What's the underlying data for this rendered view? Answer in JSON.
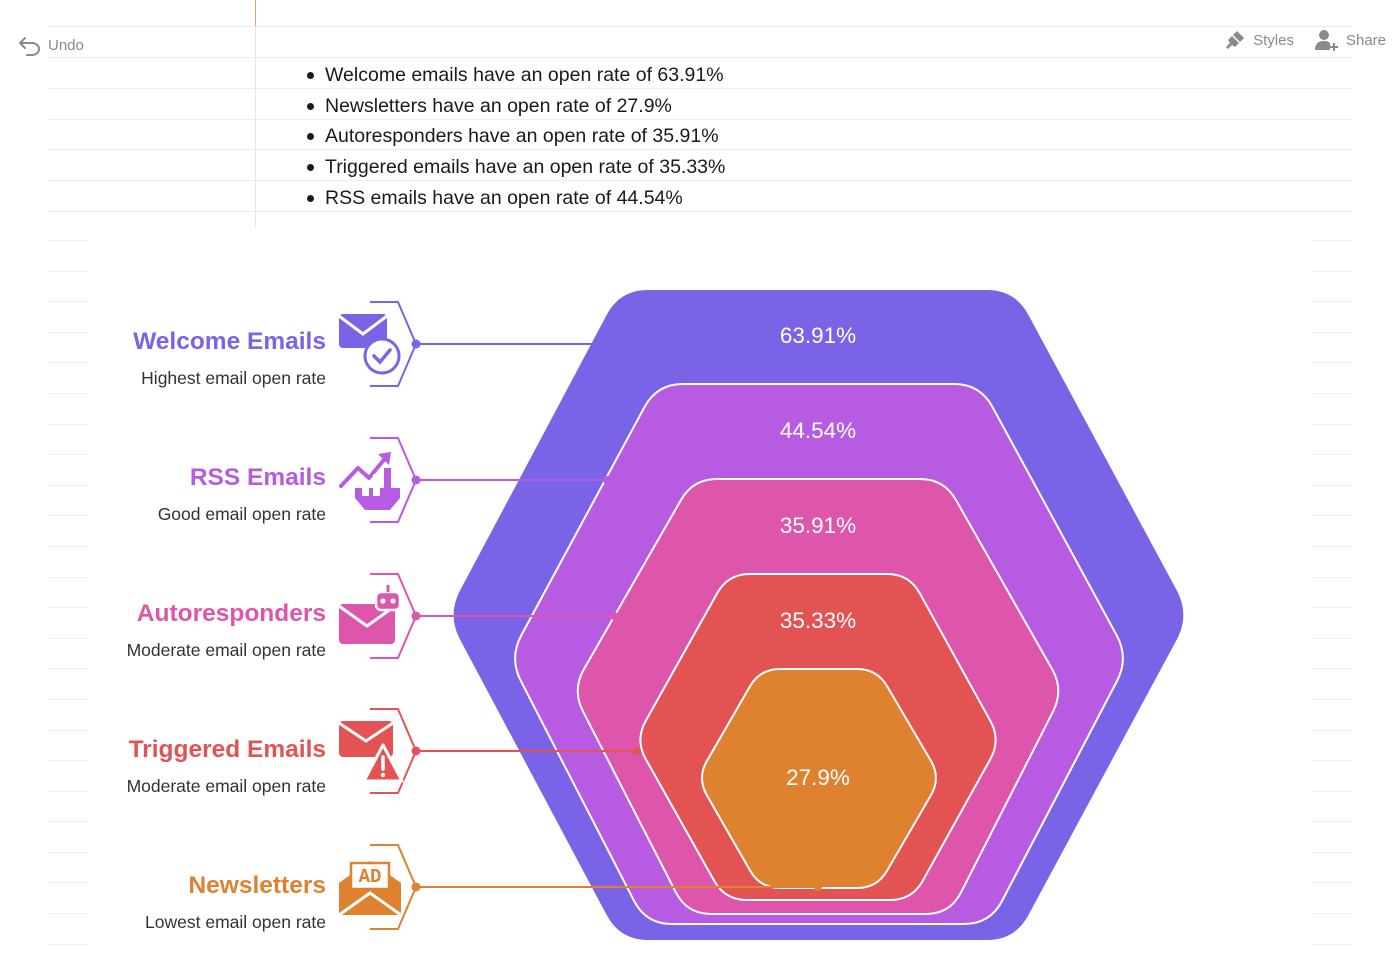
{
  "toolbar": {
    "undo_label": "Undo",
    "undo_icon": "undo-icon",
    "styles_label": "Styles",
    "styles_icon": "brush-icon",
    "share_label": "Share",
    "share_icon": "add-user-icon"
  },
  "bullets": [
    "Welcome emails have an open rate of 63.91%",
    "Newsletters have an open rate of 27.9%",
    "Autoresponders have an open rate of 35.91%",
    "Triggered emails have an open rate of 35.33%",
    "RSS emails have an open rate of 44.54%"
  ],
  "chart_data": {
    "type": "nested-hexagon",
    "layers": [
      {
        "label": "Welcome Emails",
        "description": "Highest email open rate",
        "value": 63.91,
        "value_label": "63.91%",
        "color": "#7B63E8",
        "icon": "mail-check-icon"
      },
      {
        "label": "RSS Emails",
        "description": "Good email open rate",
        "value": 44.54,
        "value_label": "44.54%",
        "color": "#B75BE3",
        "icon": "chart-growth-icon"
      },
      {
        "label": "Autoresponders",
        "description": "Moderate email open rate",
        "value": 35.91,
        "value_label": "35.91%",
        "color": "#DD56AB",
        "icon": "mail-robot-icon"
      },
      {
        "label": "Triggered Emails",
        "description": "Moderate email open rate",
        "value": 35.33,
        "value_label": "35.33%",
        "color": "#E45353",
        "icon": "mail-alert-icon"
      },
      {
        "label": "Newsletters",
        "description": "Lowest email open rate",
        "value": 27.9,
        "value_label": "27.9%",
        "color": "#DF8230",
        "icon": "mail-ad-icon"
      }
    ]
  }
}
